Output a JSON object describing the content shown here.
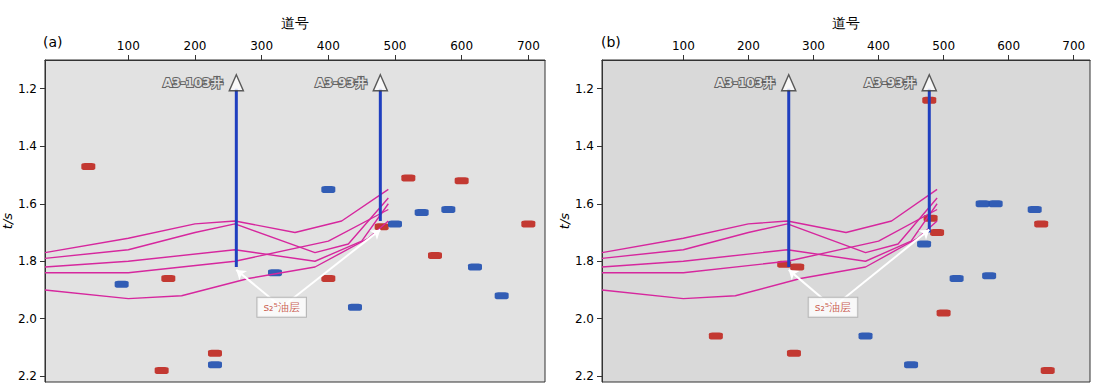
{
  "chart_data": [
    {
      "type": "section",
      "title": "(a)",
      "x_label": "道号",
      "y_label": "t/s",
      "xlim": [
        -25,
        725
      ],
      "xticks": [
        100,
        200,
        300,
        400,
        500,
        600,
        700
      ],
      "ylim": [
        1.1,
        2.22
      ],
      "yticks": [
        1.2,
        1.4,
        1.6,
        1.8,
        {
          "value": 2,
          "label": "2.0"
        },
        2.2
      ],
      "wells": [
        {
          "name": "A3-103井",
          "trace": 262,
          "t_top": 1.2,
          "t_bottom": 1.82,
          "color": "#1f3fbf"
        },
        {
          "name": "A3-93井",
          "trace": 478,
          "t_top": 1.2,
          "t_bottom": 1.66,
          "color": "#1f3fbf"
        }
      ],
      "horizons": {
        "color": "#d6279e",
        "lines": [
          [
            [
              -25,
              1.77
            ],
            [
              100,
              1.72
            ],
            [
              200,
              1.67
            ],
            [
              260,
              1.66
            ],
            [
              350,
              1.7
            ],
            [
              420,
              1.66
            ],
            [
              490,
              1.55
            ]
          ],
          [
            [
              -25,
              1.79
            ],
            [
              100,
              1.76
            ],
            [
              200,
              1.7
            ],
            [
              260,
              1.67
            ],
            [
              380,
              1.77
            ],
            [
              430,
              1.74
            ],
            [
              490,
              1.58
            ]
          ],
          [
            [
              -25,
              1.82
            ],
            [
              100,
              1.8
            ],
            [
              260,
              1.76
            ],
            [
              380,
              1.8
            ],
            [
              450,
              1.73
            ],
            [
              490,
              1.6
            ]
          ],
          [
            [
              -25,
              1.84
            ],
            [
              100,
              1.84
            ],
            [
              260,
              1.8
            ],
            [
              400,
              1.73
            ],
            [
              490,
              1.62
            ]
          ],
          [
            [
              -25,
              1.9
            ],
            [
              100,
              1.93
            ],
            [
              180,
              1.92
            ],
            [
              280,
              1.86
            ],
            [
              380,
              1.82
            ],
            [
              460,
              1.72
            ],
            [
              490,
              1.66
            ]
          ]
        ]
      },
      "anomalies": [
        {
          "color": "#c0271f",
          "points": [
            [
              40,
              1.47
            ],
            [
              480,
              1.68
            ],
            [
              520,
              1.51
            ],
            [
              600,
              1.52
            ],
            [
              160,
              1.86
            ],
            [
              400,
              1.86
            ],
            [
              560,
              1.78
            ],
            [
              150,
              2.18
            ],
            [
              700,
              1.67
            ],
            [
              230,
              2.12
            ]
          ]
        },
        {
          "color": "#1f4fb0",
          "points": [
            [
              500,
              1.67
            ],
            [
              540,
              1.63
            ],
            [
              580,
              1.62
            ],
            [
              400,
              1.55
            ],
            [
              320,
              1.84
            ],
            [
              620,
              1.82
            ],
            [
              440,
              1.96
            ],
            [
              230,
              2.16
            ],
            [
              660,
              1.92
            ],
            [
              90,
              1.88
            ]
          ]
        }
      ],
      "annotation": {
        "text": "s₂⁵油层",
        "trace": 330,
        "t": 1.96,
        "targets": [
          [
            262,
            1.83
          ],
          [
            478,
            1.69
          ]
        ]
      }
    },
    {
      "type": "section",
      "title": "(b)",
      "x_label": "道号",
      "y_label": "t/s",
      "xlim": [
        -25,
        725
      ],
      "xticks": [
        100,
        200,
        300,
        400,
        500,
        600,
        700
      ],
      "ylim": [
        1.1,
        2.22
      ],
      "yticks": [
        1.2,
        1.4,
        1.6,
        1.8,
        {
          "value": 2,
          "label": "2.0"
        },
        2.2
      ],
      "wells": [
        {
          "name": "A3-103井",
          "trace": 262,
          "t_top": 1.2,
          "t_bottom": 1.82,
          "color": "#1f3fbf"
        },
        {
          "name": "A3-93井",
          "trace": 478,
          "t_top": 1.2,
          "t_bottom": 1.7,
          "color": "#1f3fbf"
        }
      ],
      "horizons": {
        "color": "#d6279e",
        "lines": [
          [
            [
              -25,
              1.77
            ],
            [
              100,
              1.72
            ],
            [
              200,
              1.67
            ],
            [
              260,
              1.66
            ],
            [
              350,
              1.7
            ],
            [
              420,
              1.66
            ],
            [
              490,
              1.55
            ]
          ],
          [
            [
              -25,
              1.79
            ],
            [
              100,
              1.76
            ],
            [
              200,
              1.7
            ],
            [
              260,
              1.67
            ],
            [
              380,
              1.77
            ],
            [
              430,
              1.74
            ],
            [
              490,
              1.58
            ]
          ],
          [
            [
              -25,
              1.82
            ],
            [
              100,
              1.8
            ],
            [
              260,
              1.76
            ],
            [
              380,
              1.8
            ],
            [
              450,
              1.73
            ],
            [
              490,
              1.6
            ]
          ],
          [
            [
              -25,
              1.84
            ],
            [
              100,
              1.84
            ],
            [
              260,
              1.8
            ],
            [
              400,
              1.73
            ],
            [
              490,
              1.62
            ]
          ],
          [
            [
              -25,
              1.9
            ],
            [
              100,
              1.93
            ],
            [
              180,
              1.92
            ],
            [
              280,
              1.86
            ],
            [
              380,
              1.82
            ],
            [
              460,
              1.72
            ],
            [
              490,
              1.66
            ]
          ]
        ]
      },
      "anomalies": [
        {
          "color": "#c0271f",
          "points": [
            [
              255,
              1.81
            ],
            [
              275,
              1.82
            ],
            [
              480,
              1.65
            ],
            [
              490,
              1.7
            ],
            [
              650,
              1.67
            ],
            [
              478,
              1.24
            ],
            [
              500,
              1.98
            ],
            [
              150,
              2.06
            ],
            [
              270,
              2.12
            ],
            [
              660,
              2.18
            ]
          ]
        },
        {
          "color": "#1f4fb0",
          "points": [
            [
              560,
              1.6
            ],
            [
              580,
              1.6
            ],
            [
              470,
              1.74
            ],
            [
              520,
              1.86
            ],
            [
              570,
              1.85
            ],
            [
              640,
              1.62
            ],
            [
              380,
              2.06
            ],
            [
              450,
              2.16
            ]
          ]
        }
      ],
      "annotation": {
        "text": "s₂⁵油层",
        "trace": 330,
        "t": 1.96,
        "targets": [
          [
            262,
            1.83
          ],
          [
            478,
            1.69
          ]
        ]
      }
    }
  ]
}
